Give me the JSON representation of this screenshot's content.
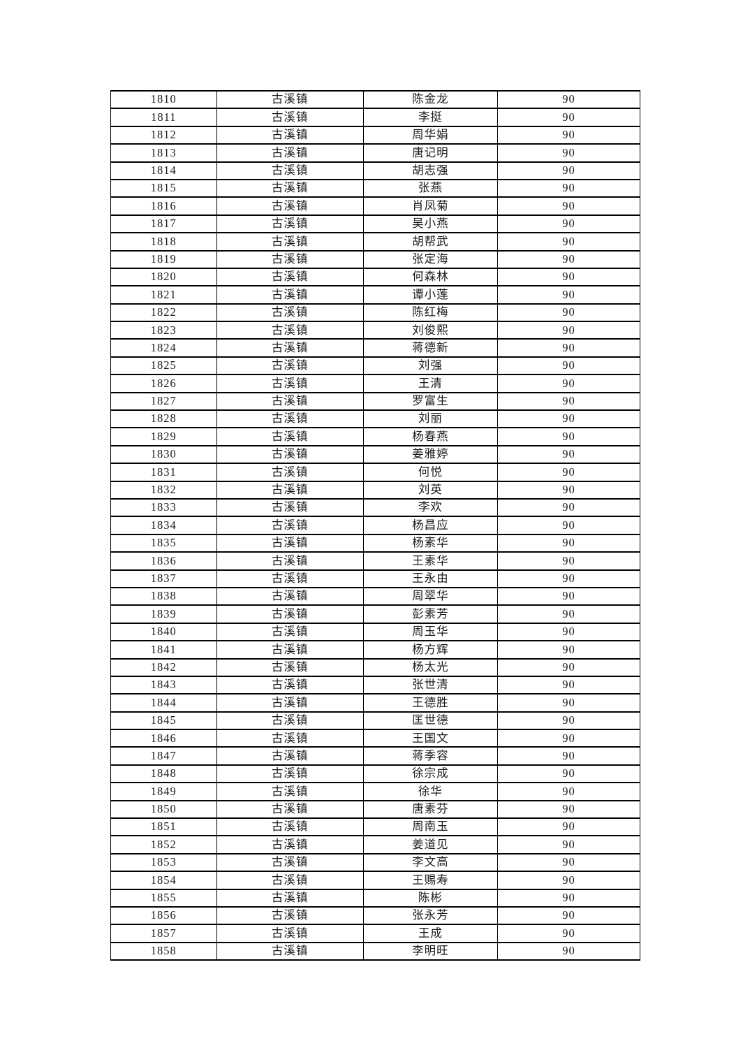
{
  "table": {
    "rows": [
      {
        "no": "1810",
        "town": "古溪镇",
        "name": "陈金龙",
        "score": "90"
      },
      {
        "no": "1811",
        "town": "古溪镇",
        "name": "李挺",
        "score": "90"
      },
      {
        "no": "1812",
        "town": "古溪镇",
        "name": "周华娟",
        "score": "90"
      },
      {
        "no": "1813",
        "town": "古溪镇",
        "name": "唐记明",
        "score": "90"
      },
      {
        "no": "1814",
        "town": "古溪镇",
        "name": "胡志强",
        "score": "90"
      },
      {
        "no": "1815",
        "town": "古溪镇",
        "name": "张燕",
        "score": "90"
      },
      {
        "no": "1816",
        "town": "古溪镇",
        "name": "肖凤菊",
        "score": "90"
      },
      {
        "no": "1817",
        "town": "古溪镇",
        "name": "吴小燕",
        "score": "90"
      },
      {
        "no": "1818",
        "town": "古溪镇",
        "name": "胡帮武",
        "score": "90"
      },
      {
        "no": "1819",
        "town": "古溪镇",
        "name": "张定海",
        "score": "90"
      },
      {
        "no": "1820",
        "town": "古溪镇",
        "name": "何森林",
        "score": "90"
      },
      {
        "no": "1821",
        "town": "古溪镇",
        "name": "谭小莲",
        "score": "90"
      },
      {
        "no": "1822",
        "town": "古溪镇",
        "name": "陈红梅",
        "score": "90"
      },
      {
        "no": "1823",
        "town": "古溪镇",
        "name": "刘俊熙",
        "score": "90"
      },
      {
        "no": "1824",
        "town": "古溪镇",
        "name": "蒋德新",
        "score": "90"
      },
      {
        "no": "1825",
        "town": "古溪镇",
        "name": "刘强",
        "score": "90"
      },
      {
        "no": "1826",
        "town": "古溪镇",
        "name": "王清",
        "score": "90"
      },
      {
        "no": "1827",
        "town": "古溪镇",
        "name": "罗富生",
        "score": "90"
      },
      {
        "no": "1828",
        "town": "古溪镇",
        "name": "刘丽",
        "score": "90"
      },
      {
        "no": "1829",
        "town": "古溪镇",
        "name": "杨春燕",
        "score": "90"
      },
      {
        "no": "1830",
        "town": "古溪镇",
        "name": "姜雅婷",
        "score": "90"
      },
      {
        "no": "1831",
        "town": "古溪镇",
        "name": "何悦",
        "score": "90"
      },
      {
        "no": "1832",
        "town": "古溪镇",
        "name": "刘英",
        "score": "90"
      },
      {
        "no": "1833",
        "town": "古溪镇",
        "name": "李欢",
        "score": "90"
      },
      {
        "no": "1834",
        "town": "古溪镇",
        "name": "杨昌应",
        "score": "90"
      },
      {
        "no": "1835",
        "town": "古溪镇",
        "name": "杨素华",
        "score": "90"
      },
      {
        "no": "1836",
        "town": "古溪镇",
        "name": "王素华",
        "score": "90"
      },
      {
        "no": "1837",
        "town": "古溪镇",
        "name": "王永由",
        "score": "90"
      },
      {
        "no": "1838",
        "town": "古溪镇",
        "name": "周翠华",
        "score": "90"
      },
      {
        "no": "1839",
        "town": "古溪镇",
        "name": "彭素芳",
        "score": "90"
      },
      {
        "no": "1840",
        "town": "古溪镇",
        "name": "周玉华",
        "score": "90"
      },
      {
        "no": "1841",
        "town": "古溪镇",
        "name": "杨方辉",
        "score": "90"
      },
      {
        "no": "1842",
        "town": "古溪镇",
        "name": "杨太光",
        "score": "90"
      },
      {
        "no": "1843",
        "town": "古溪镇",
        "name": "张世清",
        "score": "90"
      },
      {
        "no": "1844",
        "town": "古溪镇",
        "name": "王德胜",
        "score": "90"
      },
      {
        "no": "1845",
        "town": "古溪镇",
        "name": "匡世德",
        "score": "90"
      },
      {
        "no": "1846",
        "town": "古溪镇",
        "name": "王国文",
        "score": "90"
      },
      {
        "no": "1847",
        "town": "古溪镇",
        "name": "蒋季容",
        "score": "90"
      },
      {
        "no": "1848",
        "town": "古溪镇",
        "name": "徐宗成",
        "score": "90"
      },
      {
        "no": "1849",
        "town": "古溪镇",
        "name": "徐华",
        "score": "90"
      },
      {
        "no": "1850",
        "town": "古溪镇",
        "name": "唐素芬",
        "score": "90"
      },
      {
        "no": "1851",
        "town": "古溪镇",
        "name": "周南玉",
        "score": "90"
      },
      {
        "no": "1852",
        "town": "古溪镇",
        "name": "姜道见",
        "score": "90"
      },
      {
        "no": "1853",
        "town": "古溪镇",
        "name": "李文高",
        "score": "90"
      },
      {
        "no": "1854",
        "town": "古溪镇",
        "name": "王赐寿",
        "score": "90"
      },
      {
        "no": "1855",
        "town": "古溪镇",
        "name": "陈彬",
        "score": "90"
      },
      {
        "no": "1856",
        "town": "古溪镇",
        "name": "张永芳",
        "score": "90"
      },
      {
        "no": "1857",
        "town": "古溪镇",
        "name": "王成",
        "score": "90"
      },
      {
        "no": "1858",
        "town": "古溪镇",
        "name": "李明旺",
        "score": "90"
      }
    ]
  }
}
